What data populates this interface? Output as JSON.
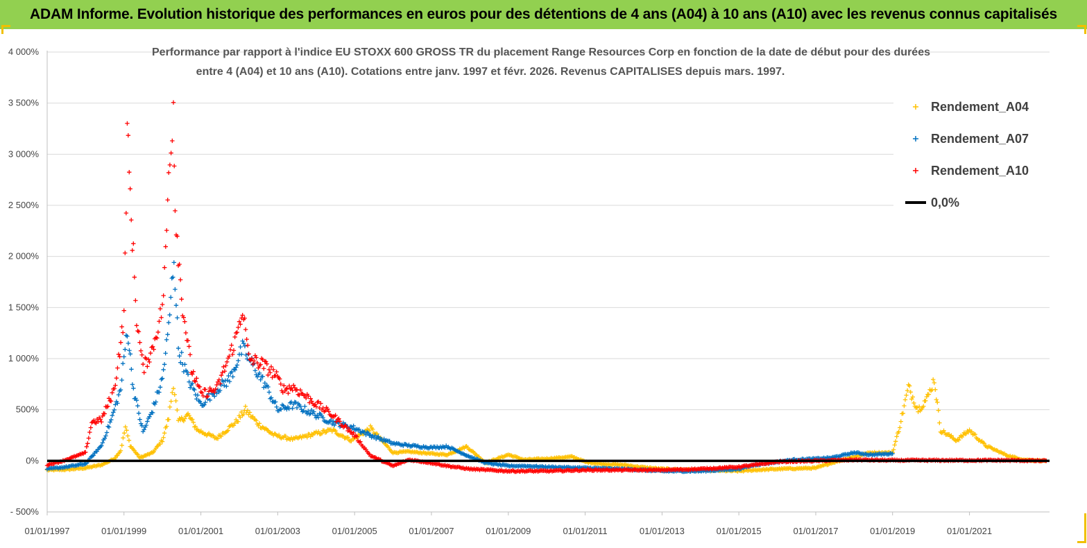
{
  "banner": {
    "title": "ADAM Informe. Evolution historique des performances en euros pour des détentions de 4 ans (A04) à 10 ans (A10) avec les revenus connus capitalisés",
    "background": "#92d050"
  },
  "chart_data": {
    "type": "scatter",
    "title_line1": "Performance par rapport à l'indice EU STOXX 600 GROSS TR  du placement Range Resources Corp en fonction de la date de début pour des durées",
    "title_line2": "entre 4 (A04) et 10 ans (A10).  Cotations entre janv. 1997 et févr. 2026. Revenus  CAPITALISES depuis mars. 1997.",
    "xlabel": "",
    "ylabel": "",
    "x_tick_labels": [
      "01/01/1997",
      "01/01/1999",
      "01/01/2001",
      "01/01/2003",
      "01/01/2005",
      "01/01/2007",
      "01/01/2009",
      "01/01/2011",
      "01/01/2013",
      "01/01/2015",
      "01/01/2017",
      "01/01/2019",
      "01/01/2021"
    ],
    "y_tick_labels": [
      "4 000%",
      "3 500%",
      "3 000%",
      "2 500%",
      "2 000%",
      "1 500%",
      "1 000%",
      "500%",
      "0%",
      "- 500%"
    ],
    "xlim": [
      "1997-01-01",
      "2023-02-01"
    ],
    "ylim": [
      -500,
      4000
    ],
    "y_unit": "%",
    "grid": "horizontal",
    "legend_position": "top-right",
    "series": [
      {
        "name": "Rendement_A04",
        "color": "#ffc000",
        "marker": "plus",
        "points": [
          [
            "1997-01-01",
            -90
          ],
          [
            "1997-07-01",
            -85
          ],
          [
            "1998-01-01",
            -70
          ],
          [
            "1998-06-01",
            -40
          ],
          [
            "1998-10-01",
            20
          ],
          [
            "1998-12-01",
            100
          ],
          [
            "1999-01-15",
            330
          ],
          [
            "1999-03-01",
            150
          ],
          [
            "1999-06-01",
            30
          ],
          [
            "1999-10-01",
            80
          ],
          [
            "2000-01-01",
            200
          ],
          [
            "2000-03-01",
            420
          ],
          [
            "2000-04-15",
            760
          ],
          [
            "2000-06-01",
            380
          ],
          [
            "2000-09-01",
            450
          ],
          [
            "2000-12-01",
            300
          ],
          [
            "2001-06-01",
            220
          ],
          [
            "2001-12-01",
            380
          ],
          [
            "2002-03-01",
            500
          ],
          [
            "2002-07-01",
            360
          ],
          [
            "2002-12-01",
            250
          ],
          [
            "2003-06-01",
            210
          ],
          [
            "2003-12-01",
            260
          ],
          [
            "2004-06-01",
            300
          ],
          [
            "2004-12-01",
            200
          ],
          [
            "2005-06-01",
            320
          ],
          [
            "2006-01-01",
            80
          ],
          [
            "2006-06-01",
            90
          ],
          [
            "2007-01-01",
            70
          ],
          [
            "2007-06-01",
            60
          ],
          [
            "2007-12-01",
            140
          ],
          [
            "2008-06-01",
            -20
          ],
          [
            "2009-01-01",
            60
          ],
          [
            "2009-06-01",
            10
          ],
          [
            "2010-01-01",
            20
          ],
          [
            "2010-09-01",
            40
          ],
          [
            "2011-01-01",
            -10
          ],
          [
            "2011-06-01",
            -30
          ],
          [
            "2012-01-01",
            -40
          ],
          [
            "2012-06-01",
            -60
          ],
          [
            "2013-01-01",
            -80
          ],
          [
            "2014-01-01",
            -90
          ],
          [
            "2015-01-01",
            -100
          ],
          [
            "2015-06-01",
            -90
          ],
          [
            "2016-01-01",
            -80
          ],
          [
            "2017-01-01",
            -70
          ],
          [
            "2017-06-01",
            -20
          ],
          [
            "2018-01-01",
            40
          ],
          [
            "2018-06-01",
            80
          ],
          [
            "2019-01-01",
            80
          ],
          [
            "2019-03-01",
            300
          ],
          [
            "2019-06-01",
            720
          ],
          [
            "2019-09-01",
            500
          ],
          [
            "2019-12-01",
            620
          ],
          [
            "2020-02-01",
            800
          ],
          [
            "2020-04-01",
            300
          ],
          [
            "2020-09-01",
            200
          ],
          [
            "2021-01-01",
            300
          ],
          [
            "2021-06-01",
            150
          ],
          [
            "2022-01-01",
            50
          ],
          [
            "2022-06-01",
            10
          ],
          [
            "2023-01-01",
            0
          ]
        ]
      },
      {
        "name": "Rendement_A07",
        "color": "#0070c0",
        "marker": "plus",
        "points": [
          [
            "1997-01-01",
            -80
          ],
          [
            "1997-07-01",
            -60
          ],
          [
            "1998-01-01",
            -30
          ],
          [
            "1998-06-01",
            150
          ],
          [
            "1998-09-01",
            400
          ],
          [
            "1998-12-01",
            700
          ],
          [
            "1999-02-01",
            1300
          ],
          [
            "1999-04-01",
            700
          ],
          [
            "1999-07-01",
            280
          ],
          [
            "1999-10-01",
            500
          ],
          [
            "2000-01-01",
            800
          ],
          [
            "2000-03-01",
            1300
          ],
          [
            "2000-04-20",
            2000
          ],
          [
            "2000-06-01",
            1100
          ],
          [
            "2000-09-01",
            800
          ],
          [
            "2001-01-01",
            550
          ],
          [
            "2001-06-01",
            700
          ],
          [
            "2001-10-01",
            800
          ],
          [
            "2002-02-01",
            1100
          ],
          [
            "2002-06-01",
            900
          ],
          [
            "2002-09-01",
            750
          ],
          [
            "2003-01-01",
            500
          ],
          [
            "2003-06-01",
            550
          ],
          [
            "2004-01-01",
            450
          ],
          [
            "2004-06-01",
            380
          ],
          [
            "2005-01-01",
            320
          ],
          [
            "2005-06-01",
            250
          ],
          [
            "2006-01-01",
            170
          ],
          [
            "2006-06-01",
            150
          ],
          [
            "2007-01-01",
            130
          ],
          [
            "2007-06-01",
            140
          ],
          [
            "2008-01-01",
            40
          ],
          [
            "2008-06-01",
            -20
          ],
          [
            "2009-01-01",
            -50
          ],
          [
            "2009-06-01",
            -50
          ],
          [
            "2010-01-01",
            -60
          ],
          [
            "2011-01-01",
            -70
          ],
          [
            "2012-01-01",
            -80
          ],
          [
            "2013-01-01",
            -100
          ],
          [
            "2014-01-01",
            -100
          ],
          [
            "2015-01-01",
            -80
          ],
          [
            "2015-06-01",
            -40
          ],
          [
            "2016-01-01",
            -10
          ],
          [
            "2016-06-01",
            10
          ],
          [
            "2017-01-01",
            20
          ],
          [
            "2017-06-01",
            30
          ],
          [
            "2018-01-01",
            80
          ],
          [
            "2018-06-01",
            60
          ],
          [
            "2019-01-01",
            70
          ]
        ]
      },
      {
        "name": "Rendement_A10",
        "color": "#ff0000",
        "marker": "plus",
        "points": [
          [
            "1997-01-01",
            -40
          ],
          [
            "1997-06-01",
            0
          ],
          [
            "1998-01-01",
            80
          ],
          [
            "1998-03-01",
            380
          ],
          [
            "1998-06-01",
            400
          ],
          [
            "1998-10-01",
            700
          ],
          [
            "1999-01-01",
            1400
          ],
          [
            "1999-02-01",
            3200
          ],
          [
            "1999-03-01",
            2600
          ],
          [
            "1999-05-01",
            1400
          ],
          [
            "1999-07-01",
            900
          ],
          [
            "1999-10-01",
            1100
          ],
          [
            "2000-01-01",
            1500
          ],
          [
            "2000-02-01",
            2000
          ],
          [
            "2000-03-01",
            2800
          ],
          [
            "2000-04-15",
            3500
          ],
          [
            "2000-05-01",
            2500
          ],
          [
            "2000-07-01",
            1600
          ],
          [
            "2000-10-01",
            900
          ],
          [
            "2001-01-01",
            650
          ],
          [
            "2001-06-01",
            700
          ],
          [
            "2001-12-01",
            1200
          ],
          [
            "2002-02-01",
            1500
          ],
          [
            "2002-04-01",
            1000
          ],
          [
            "2002-08-01",
            950
          ],
          [
            "2002-12-01",
            850
          ],
          [
            "2003-03-01",
            700
          ],
          [
            "2003-06-01",
            720
          ],
          [
            "2003-12-01",
            580
          ],
          [
            "2004-06-01",
            450
          ],
          [
            "2005-01-01",
            250
          ],
          [
            "2005-06-01",
            50
          ],
          [
            "2006-01-01",
            -50
          ],
          [
            "2006-06-01",
            10
          ],
          [
            "2007-01-01",
            -20
          ],
          [
            "2007-06-01",
            -50
          ],
          [
            "2008-01-01",
            -80
          ],
          [
            "2009-01-01",
            -100
          ],
          [
            "2010-01-01",
            -100
          ],
          [
            "2011-01-01",
            -90
          ],
          [
            "2012-01-01",
            -90
          ],
          [
            "2013-01-01",
            -90
          ],
          [
            "2014-01-01",
            -80
          ],
          [
            "2015-01-01",
            -60
          ],
          [
            "2015-06-01",
            -40
          ],
          [
            "2016-01-01",
            -10
          ],
          [
            "2017-01-01",
            0
          ],
          [
            "2018-01-01",
            10
          ],
          [
            "2019-01-01",
            5
          ],
          [
            "2020-01-01",
            5
          ],
          [
            "2021-01-01",
            5
          ],
          [
            "2022-01-01",
            5
          ],
          [
            "2023-01-01",
            0
          ]
        ]
      },
      {
        "name": "0,0%",
        "color": "#000000",
        "marker": "line",
        "points": [
          [
            "1997-01-01",
            0
          ],
          [
            "2023-02-01",
            0
          ]
        ]
      }
    ]
  }
}
